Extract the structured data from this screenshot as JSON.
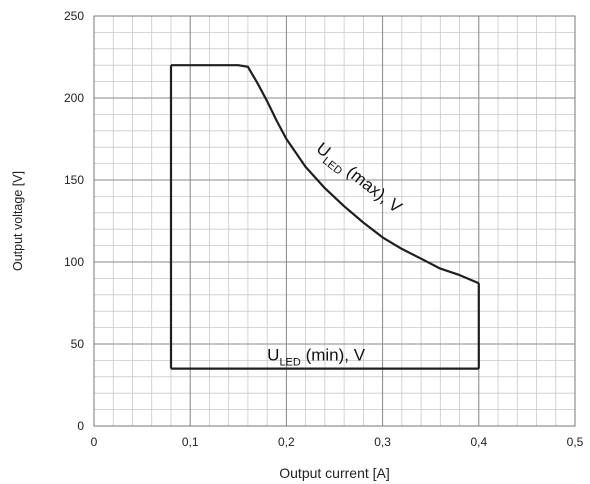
{
  "chart_data": {
    "type": "line",
    "xlabel": "Output current [A]",
    "ylabel": "Output voltage [V]",
    "xlim": [
      0,
      0.5
    ],
    "ylim": [
      0,
      250
    ],
    "x_ticks": [
      "0",
      "0,1",
      "0,2",
      "0,3",
      "0,4",
      "0,5"
    ],
    "y_ticks": [
      "0",
      "50",
      "100",
      "150",
      "200",
      "250"
    ],
    "grid": true,
    "grid_minor": true,
    "series": [
      {
        "name": "U_LED (max), V",
        "values": [
          [
            0.08,
            220
          ],
          [
            0.15,
            220
          ],
          [
            0.16,
            219
          ],
          [
            0.17,
            209
          ],
          [
            0.18,
            198
          ],
          [
            0.19,
            186
          ],
          [
            0.2,
            175
          ],
          [
            0.22,
            158
          ],
          [
            0.24,
            145
          ],
          [
            0.26,
            134
          ],
          [
            0.28,
            124
          ],
          [
            0.3,
            115
          ],
          [
            0.32,
            108
          ],
          [
            0.34,
            102
          ],
          [
            0.36,
            96
          ],
          [
            0.38,
            92
          ],
          [
            0.4,
            87
          ]
        ]
      },
      {
        "name": "U_LED (min), V",
        "values": [
          [
            0.08,
            35
          ],
          [
            0.4,
            35
          ]
        ]
      },
      {
        "name": "",
        "values": [
          [
            0.08,
            35
          ],
          [
            0.08,
            220
          ]
        ]
      },
      {
        "name": "",
        "values": [
          [
            0.4,
            35
          ],
          [
            0.4,
            87
          ]
        ]
      }
    ],
    "annotations": [
      {
        "main": "U",
        "sub": "LED",
        "rest": " (max), V",
        "x": 0.23,
        "y": 168,
        "rotate": 38
      },
      {
        "main": "U",
        "sub": "LED",
        "rest": " (min), V",
        "x": 0.18,
        "y": 40,
        "rotate": 0
      }
    ]
  }
}
